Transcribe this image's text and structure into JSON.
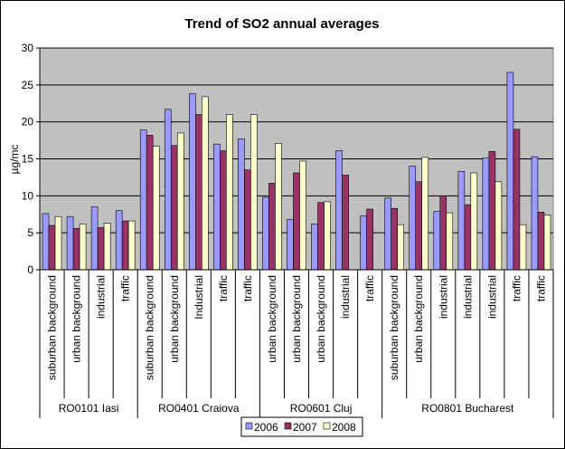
{
  "chart_data": {
    "type": "bar",
    "title": "Trend of SO2 annual averages",
    "y_label": "µg/mc",
    "groups": [
      {
        "name": "RO0101 Iasi",
        "categories": [
          "suburban background",
          "urban background",
          "industrial",
          "traffic"
        ]
      },
      {
        "name": "RO0401 Craiova",
        "categories": [
          "suburban background",
          "urban background",
          "Industrial",
          "traffic",
          "traffic"
        ]
      },
      {
        "name": "RO0601 Cluj",
        "categories": [
          "urban background",
          "urban background",
          "urban background",
          "industrial",
          "traffic"
        ]
      },
      {
        "name": "RO0801 Bucharest",
        "categories": [
          "suburban background",
          "urban background",
          "industrial",
          "industrial",
          "industrial",
          "traffic",
          "traffic"
        ]
      }
    ],
    "series": [
      {
        "name": "2006",
        "color": "#9999ff",
        "values": [
          7.6,
          7.2,
          8.5,
          8.0,
          18.9,
          21.7,
          23.8,
          17.0,
          17.7,
          9.8,
          6.8,
          6.2,
          16.1,
          7.3,
          9.7,
          14.0,
          7.9,
          13.3,
          15.1,
          26.7,
          15.3
        ]
      },
      {
        "name": "2007",
        "color": "#993366",
        "values": [
          6.0,
          5.6,
          5.7,
          6.6,
          18.2,
          16.8,
          21.0,
          16.1,
          13.5,
          11.7,
          13.1,
          9.1,
          12.8,
          8.2,
          8.3,
          11.9,
          10.0,
          8.8,
          16.0,
          19.0,
          7.8
        ]
      },
      {
        "name": "2008",
        "color": "#ffffcc",
        "values": [
          7.2,
          6.2,
          6.3,
          6.6,
          16.7,
          18.5,
          23.4,
          21.0,
          21.0,
          17.1,
          14.7,
          9.2,
          null,
          null,
          6.1,
          15.2,
          7.7,
          13.1,
          11.9,
          6.1,
          7.4
        ]
      }
    ],
    "ylim": [
      0,
      30
    ],
    "yticks": [
      0,
      5,
      10,
      15,
      20,
      25,
      30
    ],
    "grid": true,
    "legend": "bottom",
    "plot_background": "#c0c0c0"
  }
}
